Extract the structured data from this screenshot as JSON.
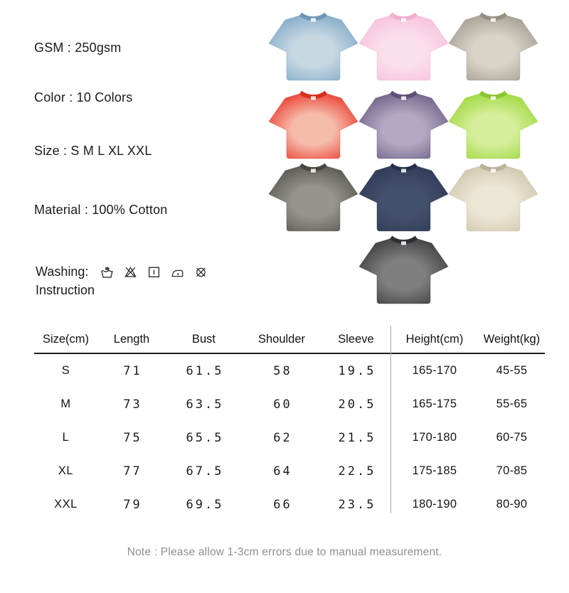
{
  "specs": {
    "items": [
      {
        "label": "GSM",
        "value": "250gsm"
      },
      {
        "label": "Color",
        "value": "10 Colors"
      },
      {
        "label": "Size",
        "value": "S M L XL XXL"
      },
      {
        "label": "Material",
        "value": "100% Cotton"
      }
    ],
    "washing": {
      "label_line1": "Washing:",
      "label_line2": "Instruction",
      "icons": [
        "hand-wash-icon",
        "do-not-bleach-icon",
        "drip-dry-icon",
        "iron-low-icon",
        "do-not-dry-clean-icon"
      ]
    }
  },
  "products": {
    "count_label": "10 Colors",
    "colors": [
      {
        "name": "washed-blue",
        "base": "#7FA9C6",
        "light": "#C7D8E2",
        "collar": "#6E97B6"
      },
      {
        "name": "pink",
        "base": "#F6C0DA",
        "light": "#FBDFEC",
        "collar": "#EFAFD0"
      },
      {
        "name": "gray-taupe",
        "base": "#A49C91",
        "light": "#D9D3C8",
        "collar": "#968E83"
      },
      {
        "name": "red",
        "base": "#E93A2D",
        "light": "#F6BCAB",
        "collar": "#D6301F"
      },
      {
        "name": "purple",
        "base": "#6F5F87",
        "light": "#B3A9C3",
        "collar": "#5F5076"
      },
      {
        "name": "lime-green",
        "base": "#9CD83B",
        "light": "#D6EE9C",
        "collar": "#8BC732"
      },
      {
        "name": "charcoal",
        "base": "#57574F",
        "light": "#96958D",
        "collar": "#47473F"
      },
      {
        "name": "navy",
        "base": "#2E3A55",
        "light": "#43506C",
        "collar": "#25304A"
      },
      {
        "name": "khaki",
        "base": "#CFC5AB",
        "light": "#ECE6D6",
        "collar": "#BDB298"
      },
      {
        "name": "washed-black",
        "base": "#3C3C3E",
        "light": "#7F7F80",
        "collar": "#2F2F31"
      }
    ]
  },
  "size_chart": {
    "headers": [
      "Size(cm)",
      "Length",
      "Bust",
      "Shoulder",
      "Sleeve",
      "Height(cm)",
      "Weight(kg)"
    ],
    "rows": [
      {
        "size": "S",
        "length": "71",
        "bust": "61.5",
        "shoulder": "58",
        "sleeve": "19.5",
        "height": "165-170",
        "weight": "45-55"
      },
      {
        "size": "M",
        "length": "73",
        "bust": "63.5",
        "shoulder": "60",
        "sleeve": "20.5",
        "height": "165-175",
        "weight": "55-65"
      },
      {
        "size": "L",
        "length": "75",
        "bust": "65.5",
        "shoulder": "62",
        "sleeve": "21.5",
        "height": "170-180",
        "weight": "60-75"
      },
      {
        "size": "XL",
        "length": "77",
        "bust": "67.5",
        "shoulder": "64",
        "sleeve": "22.5",
        "height": "175-185",
        "weight": "70-85"
      },
      {
        "size": "XXL",
        "length": "79",
        "bust": "69.5",
        "shoulder": "66",
        "sleeve": "23.5",
        "height": "180-190",
        "weight": "80-90"
      }
    ]
  },
  "note": "Note : Please allow 1-3cm errors due to manual measurement.",
  "colors": {
    "text": "#1b1b1b",
    "note_text": "#8e8e8e",
    "table_line": "#1f1f1f",
    "column_divider": "#a9a9a9",
    "background": "#ffffff"
  }
}
